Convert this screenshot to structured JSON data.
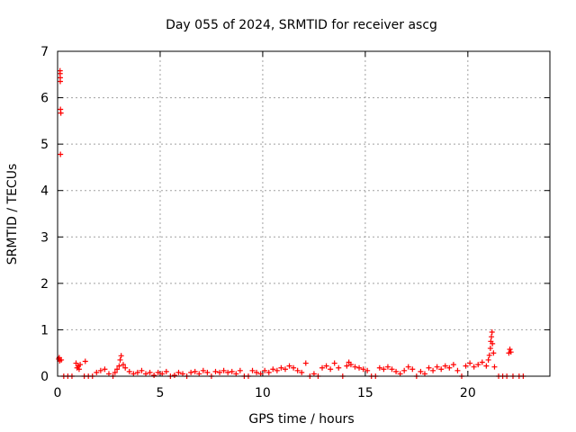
{
  "chart_data": {
    "type": "scatter",
    "title": "Day 055 of 2024, SRMTID for receiver ascg",
    "xlabel": "GPS time / hours",
    "ylabel": "SRMTID / TECUs",
    "xlim": [
      0,
      24
    ],
    "ylim": [
      0,
      7
    ],
    "x_ticks": [
      0,
      5,
      10,
      15,
      20
    ],
    "y_ticks": [
      0,
      1,
      2,
      3,
      4,
      5,
      6,
      7
    ],
    "grid": true,
    "marker": "+",
    "series": [
      {
        "name": "SRMTID",
        "color": "#ff0000",
        "points": [
          [
            0.05,
            0.37
          ],
          [
            0.08,
            0.4
          ],
          [
            0.1,
            0.33
          ],
          [
            0.12,
            6.58
          ],
          [
            0.12,
            6.52
          ],
          [
            0.13,
            6.43
          ],
          [
            0.13,
            6.35
          ],
          [
            0.14,
            5.75
          ],
          [
            0.16,
            5.67
          ],
          [
            0.14,
            4.78
          ],
          [
            0.18,
            0.35
          ],
          [
            0.3,
            0.0
          ],
          [
            0.5,
            0.0
          ],
          [
            0.7,
            0.0
          ],
          [
            0.9,
            0.28
          ],
          [
            0.95,
            0.18
          ],
          [
            1.0,
            0.22
          ],
          [
            1.05,
            0.15
          ],
          [
            1.1,
            0.25
          ],
          [
            1.3,
            0.0
          ],
          [
            1.35,
            0.32
          ],
          [
            1.5,
            0.0
          ],
          [
            1.7,
            0.0
          ],
          [
            1.9,
            0.08
          ],
          [
            2.1,
            0.12
          ],
          [
            2.3,
            0.15
          ],
          [
            2.5,
            0.05
          ],
          [
            2.7,
            0.0
          ],
          [
            2.8,
            0.08
          ],
          [
            2.9,
            0.15
          ],
          [
            3.0,
            0.22
          ],
          [
            3.05,
            0.35
          ],
          [
            3.1,
            0.44
          ],
          [
            3.2,
            0.25
          ],
          [
            3.3,
            0.18
          ],
          [
            3.5,
            0.1
          ],
          [
            3.7,
            0.05
          ],
          [
            3.9,
            0.08
          ],
          [
            4.1,
            0.12
          ],
          [
            4.3,
            0.05
          ],
          [
            4.5,
            0.08
          ],
          [
            4.7,
            0.02
          ],
          [
            4.9,
            0.08
          ],
          [
            5.1,
            0.05
          ],
          [
            5.3,
            0.1
          ],
          [
            5.5,
            0.0
          ],
          [
            5.7,
            0.02
          ],
          [
            5.9,
            0.08
          ],
          [
            6.1,
            0.05
          ],
          [
            6.3,
            0.0
          ],
          [
            6.5,
            0.08
          ],
          [
            6.7,
            0.1
          ],
          [
            6.9,
            0.05
          ],
          [
            7.1,
            0.12
          ],
          [
            7.3,
            0.08
          ],
          [
            7.5,
            0.0
          ],
          [
            7.7,
            0.1
          ],
          [
            7.9,
            0.08
          ],
          [
            8.1,
            0.12
          ],
          [
            8.3,
            0.08
          ],
          [
            8.5,
            0.1
          ],
          [
            8.7,
            0.05
          ],
          [
            8.9,
            0.12
          ],
          [
            9.1,
            0.0
          ],
          [
            9.3,
            0.0
          ],
          [
            9.5,
            0.12
          ],
          [
            9.7,
            0.08
          ],
          [
            9.9,
            0.05
          ],
          [
            10.1,
            0.12
          ],
          [
            10.3,
            0.08
          ],
          [
            10.5,
            0.15
          ],
          [
            10.7,
            0.12
          ],
          [
            10.9,
            0.18
          ],
          [
            11.1,
            0.15
          ],
          [
            11.3,
            0.22
          ],
          [
            11.5,
            0.18
          ],
          [
            11.7,
            0.12
          ],
          [
            11.9,
            0.08
          ],
          [
            12.1,
            0.28
          ],
          [
            12.3,
            0.0
          ],
          [
            12.5,
            0.05
          ],
          [
            12.7,
            0.0
          ],
          [
            12.9,
            0.18
          ],
          [
            13.1,
            0.22
          ],
          [
            13.3,
            0.15
          ],
          [
            13.5,
            0.28
          ],
          [
            13.7,
            0.18
          ],
          [
            13.9,
            0.0
          ],
          [
            14.1,
            0.22
          ],
          [
            14.2,
            0.3
          ],
          [
            14.3,
            0.25
          ],
          [
            14.5,
            0.2
          ],
          [
            14.7,
            0.18
          ],
          [
            14.9,
            0.15
          ],
          [
            15.1,
            0.12
          ],
          [
            15.3,
            0.0
          ],
          [
            15.5,
            0.0
          ],
          [
            15.7,
            0.18
          ],
          [
            15.9,
            0.15
          ],
          [
            16.1,
            0.2
          ],
          [
            16.3,
            0.15
          ],
          [
            16.5,
            0.1
          ],
          [
            16.7,
            0.05
          ],
          [
            16.9,
            0.12
          ],
          [
            17.1,
            0.2
          ],
          [
            17.3,
            0.15
          ],
          [
            17.5,
            0.0
          ],
          [
            17.7,
            0.1
          ],
          [
            17.9,
            0.05
          ],
          [
            18.1,
            0.18
          ],
          [
            18.3,
            0.12
          ],
          [
            18.5,
            0.2
          ],
          [
            18.7,
            0.15
          ],
          [
            18.9,
            0.22
          ],
          [
            19.1,
            0.18
          ],
          [
            19.3,
            0.25
          ],
          [
            19.5,
            0.12
          ],
          [
            19.7,
            0.0
          ],
          [
            19.9,
            0.22
          ],
          [
            20.1,
            0.28
          ],
          [
            20.3,
            0.2
          ],
          [
            20.5,
            0.25
          ],
          [
            20.7,
            0.3
          ],
          [
            20.9,
            0.22
          ],
          [
            21.0,
            0.35
          ],
          [
            21.05,
            0.45
          ],
          [
            21.1,
            0.6
          ],
          [
            21.12,
            0.75
          ],
          [
            21.15,
            0.85
          ],
          [
            21.18,
            0.95
          ],
          [
            21.2,
            0.7
          ],
          [
            21.25,
            0.5
          ],
          [
            21.3,
            0.2
          ],
          [
            21.5,
            0.0
          ],
          [
            21.7,
            0.0
          ],
          [
            21.9,
            0.0
          ],
          [
            22.0,
            0.5
          ],
          [
            22.05,
            0.58
          ],
          [
            22.1,
            0.52
          ],
          [
            22.2,
            0.0
          ],
          [
            22.5,
            0.0
          ],
          [
            22.7,
            0.0
          ]
        ]
      }
    ]
  }
}
